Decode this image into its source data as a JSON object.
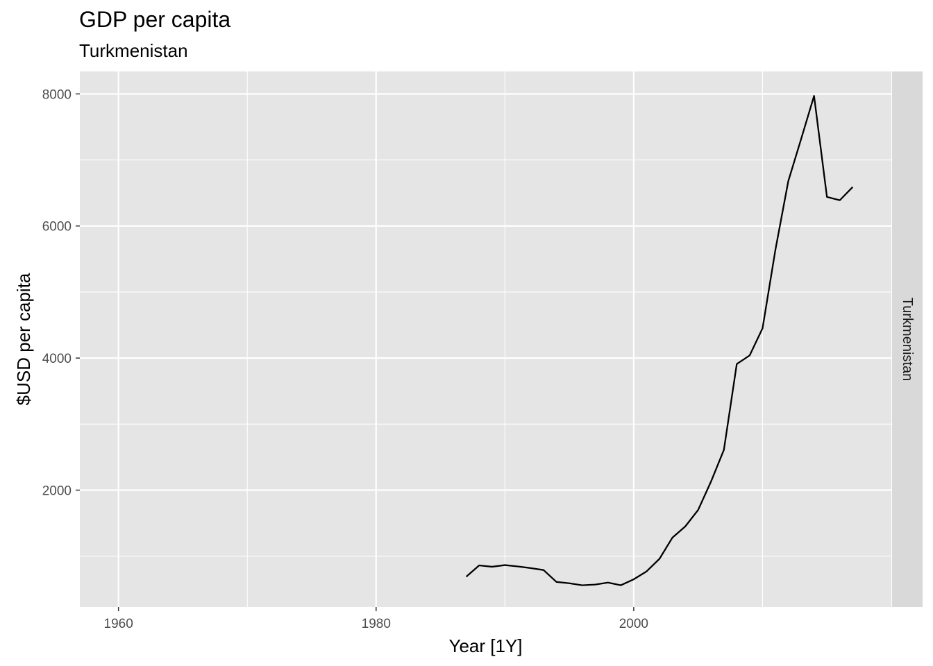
{
  "chart_data": {
    "type": "line",
    "title": "GDP per capita",
    "subtitle": "Turkmenistan",
    "xlabel": "Year [1Y]",
    "ylabel": "$USD per capita",
    "facet_label": "Turkmenistan",
    "xlim": [
      1957,
      2020
    ],
    "ylim": [
      230,
      8340
    ],
    "x_ticks": [
      1960,
      1980,
      2000
    ],
    "x_tick_labels": [
      "1960",
      "1980",
      "2000"
    ],
    "x_minor_ticks": [
      1970,
      1990,
      2010
    ],
    "y_ticks": [
      2000,
      4000,
      6000,
      8000
    ],
    "y_tick_labels": [
      "2000",
      "4000",
      "6000",
      "8000"
    ],
    "y_minor_ticks": [
      1000,
      3000,
      5000,
      7000
    ],
    "grid": true,
    "colors": {
      "panel": "#e5e5e5",
      "grid": "#ffffff",
      "strip": "#d9d9d9",
      "line": "#000000"
    },
    "series": [
      {
        "x": [
          1987,
          1988,
          1989,
          1990,
          1991,
          1992,
          1993,
          1994,
          1995,
          1996,
          1997,
          1998,
          1999,
          2000,
          2001,
          2002,
          2003,
          2004,
          2005,
          2006,
          2007,
          2008,
          2009,
          2010,
          2011,
          2012,
          2013,
          2014,
          2015,
          2016,
          2017
        ],
        "values": [
          690,
          860,
          840,
          865,
          845,
          820,
          790,
          610,
          590,
          560,
          570,
          600,
          560,
          650,
          770,
          960,
          1280,
          1450,
          1700,
          2130,
          2610,
          3910,
          4040,
          4450,
          5640,
          6680,
          7320,
          7970,
          6440,
          6390,
          6590
        ]
      }
    ]
  }
}
